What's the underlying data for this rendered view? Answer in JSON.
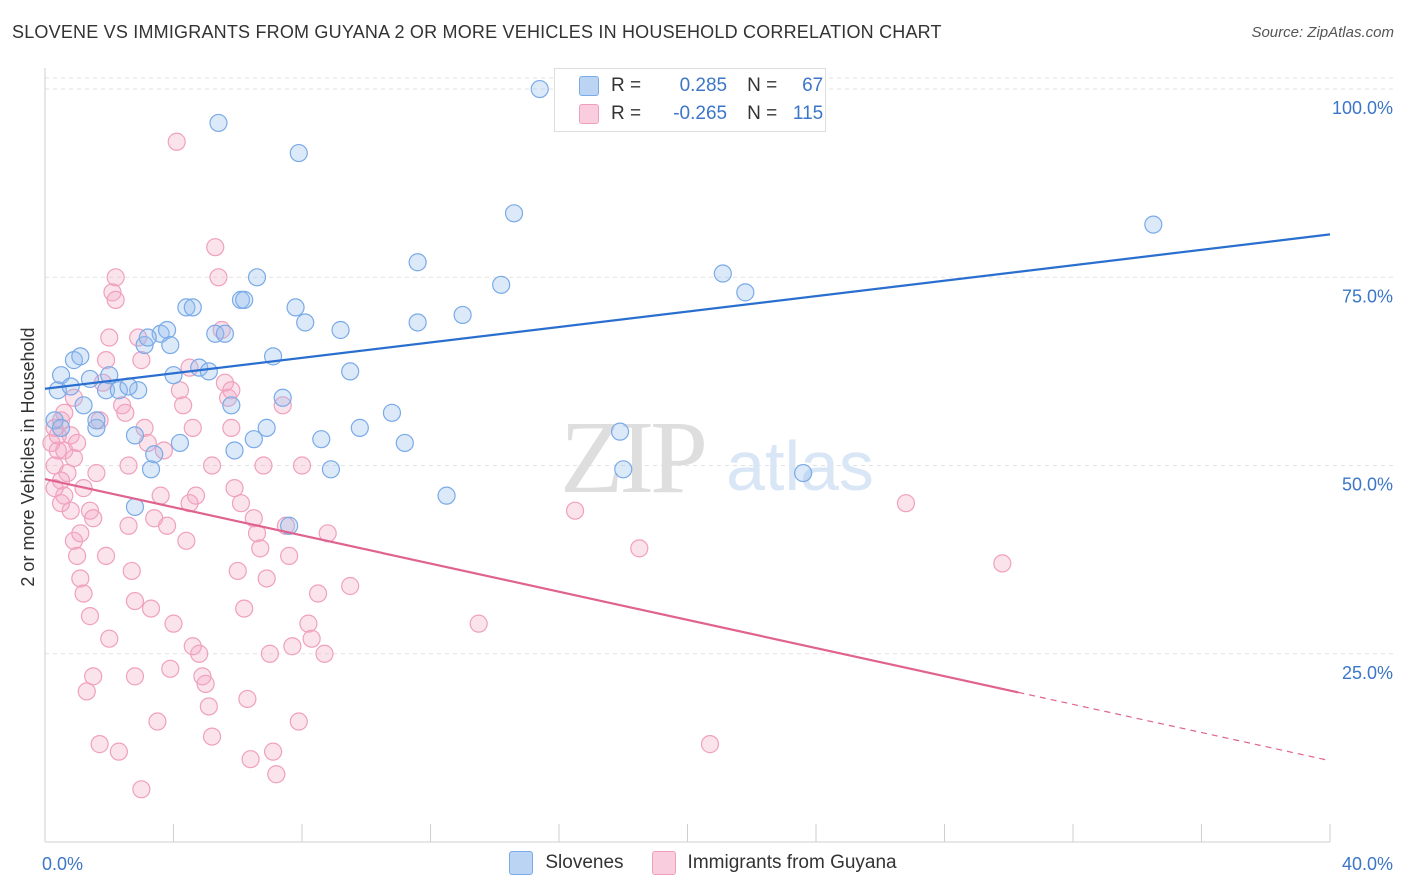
{
  "title": "SLOVENE VS IMMIGRANTS FROM GUYANA 2 OR MORE VEHICLES IN HOUSEHOLD CORRELATION CHART",
  "source": "Source: ZipAtlas.com",
  "watermark": {
    "zip": "ZIP",
    "atlas": "atlas"
  },
  "legend": {
    "r_label": "R =",
    "n_label": "N =",
    "rows": [
      {
        "r": "0.285",
        "n": "67"
      },
      {
        "r": "-0.265",
        "n": "115"
      }
    ]
  },
  "chart_data": {
    "type": "scatter",
    "title": "SLOVENE VS IMMIGRANTS FROM GUYANA 2 OR MORE VEHICLES IN HOUSEHOLD CORRELATION CHART",
    "xlabel": "",
    "ylabel": "2 or more Vehicles in Household",
    "xlim": [
      0,
      40
    ],
    "ylim": [
      0,
      102
    ],
    "x_tick_labels": [
      {
        "x": 0,
        "label": "0.0%"
      },
      {
        "x": 40,
        "label": "40.0%"
      }
    ],
    "y_ticks": [
      {
        "y": 25,
        "label": "25.0%"
      },
      {
        "y": 50,
        "label": "50.0%"
      },
      {
        "y": 75,
        "label": "75.0%"
      },
      {
        "y": 100,
        "label": "100.0%"
      }
    ],
    "colors": {
      "blue": "#7aaae8",
      "blue_line": "#2a6fcf",
      "pink": "#f0a0bd",
      "pink_line": "#e0638f",
      "tick_label": "#3b76c7"
    },
    "series": [
      {
        "name": "Slovenes",
        "trend": {
          "x0": 0,
          "y0": 60.2,
          "x1": 40,
          "y1": 80.7
        },
        "points": [
          [
            0.3,
            56
          ],
          [
            0.5,
            55
          ],
          [
            0.4,
            60
          ],
          [
            0.5,
            62
          ],
          [
            0.8,
            60.5
          ],
          [
            0.9,
            64
          ],
          [
            1.1,
            64.5
          ],
          [
            1.2,
            58
          ],
          [
            1.4,
            61.5
          ],
          [
            1.6,
            55
          ],
          [
            1.9,
            60
          ],
          [
            2,
            62
          ],
          [
            2.3,
            60
          ],
          [
            2.9,
            60
          ],
          [
            2.8,
            54
          ],
          [
            3.1,
            66
          ],
          [
            3.6,
            67.5
          ],
          [
            3.8,
            68
          ],
          [
            3.9,
            66
          ],
          [
            4,
            62
          ],
          [
            4.4,
            71
          ],
          [
            4.6,
            71
          ],
          [
            4.8,
            63
          ],
          [
            5.1,
            62.5
          ],
          [
            5.3,
            67.5
          ],
          [
            5.6,
            67.5
          ],
          [
            5.8,
            58
          ],
          [
            6.1,
            72
          ],
          [
            6.2,
            72
          ],
          [
            6.6,
            75
          ],
          [
            6.5,
            53.5
          ],
          [
            6.9,
            55
          ],
          [
            7.1,
            64.5
          ],
          [
            7.4,
            59
          ],
          [
            7.8,
            71
          ],
          [
            8.1,
            69
          ],
          [
            8.6,
            53.5
          ],
          [
            8.9,
            49.5
          ],
          [
            9.2,
            68
          ],
          [
            9.5,
            62.5
          ],
          [
            9.8,
            55
          ],
          [
            10.8,
            57
          ],
          [
            11.2,
            53
          ],
          [
            11.6,
            77
          ],
          [
            11.6,
            69
          ],
          [
            12.5,
            46
          ],
          [
            13,
            70
          ],
          [
            14.2,
            74
          ],
          [
            14.6,
            83.5
          ],
          [
            15.4,
            100
          ],
          [
            17.9,
            54.5
          ],
          [
            18,
            49.5
          ],
          [
            21.1,
            75.5
          ],
          [
            21.8,
            73
          ],
          [
            23.6,
            49
          ],
          [
            34.5,
            82
          ],
          [
            5.4,
            95.5
          ],
          [
            7.9,
            91.5
          ],
          [
            3.2,
            67
          ],
          [
            2.6,
            60.5
          ],
          [
            3.4,
            51.5
          ],
          [
            2.8,
            44.5
          ],
          [
            7.6,
            42
          ],
          [
            1.6,
            56
          ],
          [
            3.3,
            49.5
          ],
          [
            4.2,
            53
          ],
          [
            5.9,
            52
          ]
        ]
      },
      {
        "name": "Immigrants from Guyana",
        "trend": {
          "x0": 0,
          "y0": 48.2,
          "x1": 40,
          "y1": 10.8,
          "solid_until": 30.3
        },
        "points": [
          [
            0.2,
            53
          ],
          [
            0.3,
            55
          ],
          [
            0.4,
            52
          ],
          [
            0.3,
            50
          ],
          [
            0.5,
            56
          ],
          [
            0.6,
            52
          ],
          [
            0.7,
            49
          ],
          [
            0.5,
            48
          ],
          [
            0.8,
            54
          ],
          [
            0.9,
            51
          ],
          [
            0.6,
            46
          ],
          [
            0.8,
            44
          ],
          [
            0.9,
            40
          ],
          [
            1,
            53
          ],
          [
            1,
            38
          ],
          [
            1.1,
            35
          ],
          [
            1.2,
            33
          ],
          [
            1.4,
            44
          ],
          [
            1.4,
            30
          ],
          [
            1.5,
            22
          ],
          [
            1.6,
            49
          ],
          [
            1.7,
            56
          ],
          [
            1.8,
            61
          ],
          [
            1.9,
            64
          ],
          [
            1.9,
            38
          ],
          [
            2,
            67
          ],
          [
            2.1,
            73
          ],
          [
            2.2,
            75
          ],
          [
            2.2,
            72
          ],
          [
            2.4,
            58
          ],
          [
            2.5,
            57
          ],
          [
            2.6,
            42
          ],
          [
            2.7,
            36
          ],
          [
            2.8,
            32
          ],
          [
            2.8,
            22
          ],
          [
            2.9,
            67
          ],
          [
            3,
            64
          ],
          [
            3.1,
            55
          ],
          [
            3.2,
            53
          ],
          [
            3.4,
            43
          ],
          [
            3.6,
            46
          ],
          [
            3.8,
            42
          ],
          [
            3.9,
            23
          ],
          [
            4,
            29
          ],
          [
            4.2,
            60
          ],
          [
            4.3,
            58
          ],
          [
            4.5,
            63
          ],
          [
            4.6,
            55
          ],
          [
            4.7,
            46
          ],
          [
            4.8,
            25
          ],
          [
            5,
            21
          ],
          [
            5.1,
            18
          ],
          [
            5.2,
            14
          ],
          [
            5.3,
            79
          ],
          [
            5.4,
            75
          ],
          [
            5.5,
            68
          ],
          [
            5.6,
            61
          ],
          [
            5.7,
            59
          ],
          [
            5.8,
            55
          ],
          [
            5.9,
            47
          ],
          [
            6.1,
            45
          ],
          [
            6.2,
            31
          ],
          [
            6.3,
            19
          ],
          [
            6.4,
            11
          ],
          [
            6.5,
            43
          ],
          [
            6.6,
            41
          ],
          [
            6.7,
            39
          ],
          [
            6.9,
            35
          ],
          [
            7,
            25
          ],
          [
            7.1,
            12
          ],
          [
            7.2,
            9
          ],
          [
            7.4,
            58
          ],
          [
            7.6,
            38
          ],
          [
            7.7,
            26
          ],
          [
            7.9,
            16
          ],
          [
            8,
            50
          ],
          [
            8.2,
            29
          ],
          [
            8.3,
            27
          ],
          [
            8.5,
            33
          ],
          [
            8.7,
            25
          ],
          [
            1.3,
            20
          ],
          [
            1.7,
            13
          ],
          [
            2.3,
            12
          ],
          [
            3,
            7
          ],
          [
            3.5,
            16
          ],
          [
            4.1,
            93
          ],
          [
            4.4,
            40
          ],
          [
            4.9,
            22
          ],
          [
            5.8,
            60
          ],
          [
            6,
            36
          ],
          [
            0.4,
            54
          ],
          [
            0.6,
            57
          ],
          [
            0.9,
            59
          ],
          [
            1.2,
            47
          ],
          [
            1.5,
            43
          ],
          [
            2.6,
            50
          ],
          [
            3.7,
            52
          ],
          [
            4.5,
            45
          ],
          [
            5.2,
            50
          ],
          [
            6.8,
            50
          ],
          [
            7.5,
            42
          ],
          [
            8.8,
            41
          ],
          [
            9.5,
            34
          ],
          [
            13.5,
            29
          ],
          [
            16.5,
            44
          ],
          [
            18.5,
            39
          ],
          [
            20.7,
            13
          ],
          [
            26.8,
            45
          ],
          [
            29.8,
            37
          ],
          [
            0.3,
            47
          ],
          [
            0.5,
            45
          ],
          [
            1.1,
            41
          ],
          [
            2,
            27
          ],
          [
            3.3,
            31
          ],
          [
            4.6,
            26
          ]
        ]
      }
    ]
  }
}
